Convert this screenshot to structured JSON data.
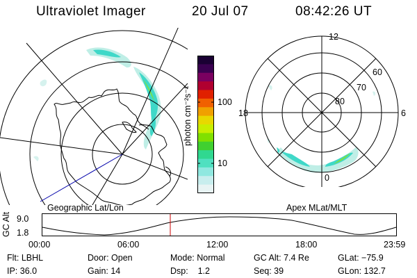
{
  "header": {
    "title": "Ultraviolet Imager",
    "date": "20 Jul 07",
    "time": "08:42:26 UT"
  },
  "left_panel": {
    "caption": "Geographic Lat/Lon"
  },
  "right_panel": {
    "caption": "Apex MLat/MLT",
    "mlt_labels": {
      "top": "12",
      "left": "18",
      "right": "6",
      "bottom": "0"
    },
    "lat_labels": [
      "80",
      "70",
      "60"
    ]
  },
  "colorbar": {
    "unit": "photon cm⁻²s⁻¹",
    "ticks": [
      "100",
      "10"
    ],
    "colors": [
      "#1a0033",
      "#3a0050",
      "#7a0060",
      "#b00030",
      "#e02000",
      "#f06000",
      "#f0a000",
      "#e8d800",
      "#c8ee00",
      "#80e000",
      "#40d030",
      "#30d890",
      "#50e0c0",
      "#90e8e0",
      "#c8eeee",
      "#e8f4f4"
    ]
  },
  "altitude_strip": {
    "ylabel": "GC Alt",
    "ymax": "9.0",
    "ymin": "1.8",
    "x_ticks": [
      "00:00",
      "06:00",
      "12:00",
      "18:00",
      "23:59"
    ],
    "marker_time": "08:42"
  },
  "info": {
    "filter": "Flt: LBHL",
    "ip": "IP: 36.0",
    "door": "Door: Open",
    "gain": "Gain: 14",
    "mode": "Mode: Normal",
    "dsp": "Dsp:    1.2",
    "gc_alt": "GC Alt: 7.4 Re",
    "seq": "Seq: 39",
    "glat": "GLat: −75.9",
    "glon": "GLon: 132.7"
  },
  "colors": {
    "aurora_cyan": "#3fd8c8",
    "aurora_green": "#7ae04a",
    "aurora_pale": "#bfeee6",
    "marker": "#cc0000",
    "track": "#0000aa"
  }
}
